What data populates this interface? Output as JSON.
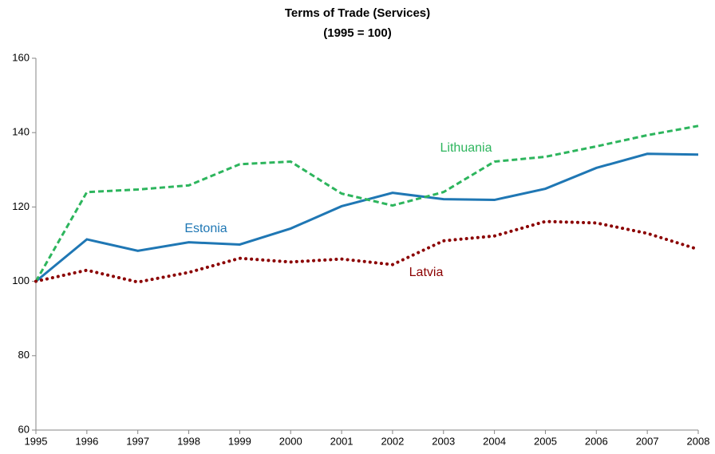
{
  "chart_data": {
    "type": "line",
    "title": "Terms of Trade (Services)",
    "subtitle": "(1995 = 100)",
    "x": [
      1995,
      1996,
      1997,
      1998,
      1999,
      2000,
      2001,
      2002,
      2003,
      2004,
      2005,
      2006,
      2007,
      2008
    ],
    "xlim": [
      1995,
      2008
    ],
    "xticks": [
      1995,
      1996,
      1997,
      1998,
      1999,
      2000,
      2001,
      2002,
      2003,
      2004,
      2005,
      2006,
      2007,
      2008
    ],
    "ylim": [
      60,
      160
    ],
    "yticks": [
      60,
      80,
      100,
      120,
      140,
      160
    ],
    "grid": false,
    "series": [
      {
        "name": "Estonia",
        "color": "#1f77b4",
        "dash": "solid",
        "values": [
          100,
          111.3,
          108.2,
          110.5,
          109.9,
          114.2,
          120.2,
          123.8,
          122.1,
          121.9,
          124.9,
          130.5,
          134.3,
          134.1
        ]
      },
      {
        "name": "Lithuania",
        "color": "#2db55d",
        "dash": "dashed",
        "values": [
          100,
          124.0,
          124.7,
          125.8,
          131.5,
          132.2,
          123.6,
          120.4,
          124.0,
          132.2,
          133.5,
          136.3,
          139.3,
          141.8
        ]
      },
      {
        "name": "Latvia",
        "color": "#8b0000",
        "dash": "dotted",
        "values": [
          100,
          103.0,
          99.8,
          102.4,
          106.2,
          105.2,
          106.0,
          104.5,
          110.9,
          112.2,
          116.1,
          115.7,
          112.9,
          108.6
        ]
      }
    ]
  }
}
